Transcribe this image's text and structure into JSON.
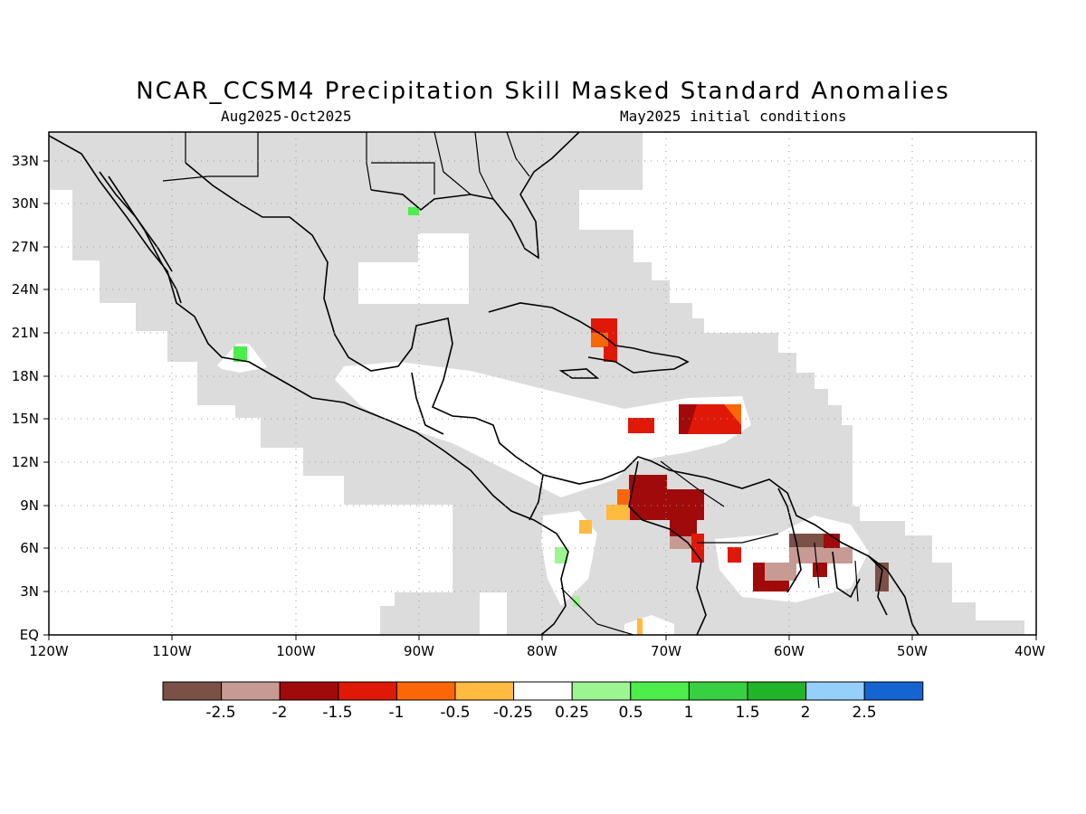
{
  "title": "NCAR_CCSM4 Precipitation Skill Masked Standard Anomalies",
  "subtitle_left": "Aug2025-Oct2025",
  "subtitle_right": "May2025 initial conditions",
  "lat_labels": [
    "33N",
    "30N",
    "27N",
    "24N",
    "21N",
    "18N",
    "15N",
    "12N",
    "9N",
    "6N",
    "3N",
    "EQ"
  ],
  "lon_labels": [
    "120W",
    "110W",
    "100W",
    "90W",
    "80W",
    "70W",
    "60W",
    "50W",
    "40W"
  ],
  "colorbar": {
    "colors": [
      "#7b5046",
      "#c89a94",
      "#a10a0a",
      "#e01808",
      "#fb6706",
      "#ffbb3f",
      "#ffffff",
      "#9df592",
      "#4ded4c",
      "#37d042",
      "#21b429",
      "#96d0fa",
      "#1464d2"
    ],
    "labels": [
      "-2.5",
      "-2",
      "-1.5",
      "-1",
      "-0.5",
      "-0.25",
      "0.25",
      "0.5",
      "1",
      "1.5",
      "2",
      "2.5"
    ]
  },
  "colors": {
    "masked": "#dcdcdc",
    "land_outline": "#000000",
    "grid": "#9a9a9a"
  }
}
